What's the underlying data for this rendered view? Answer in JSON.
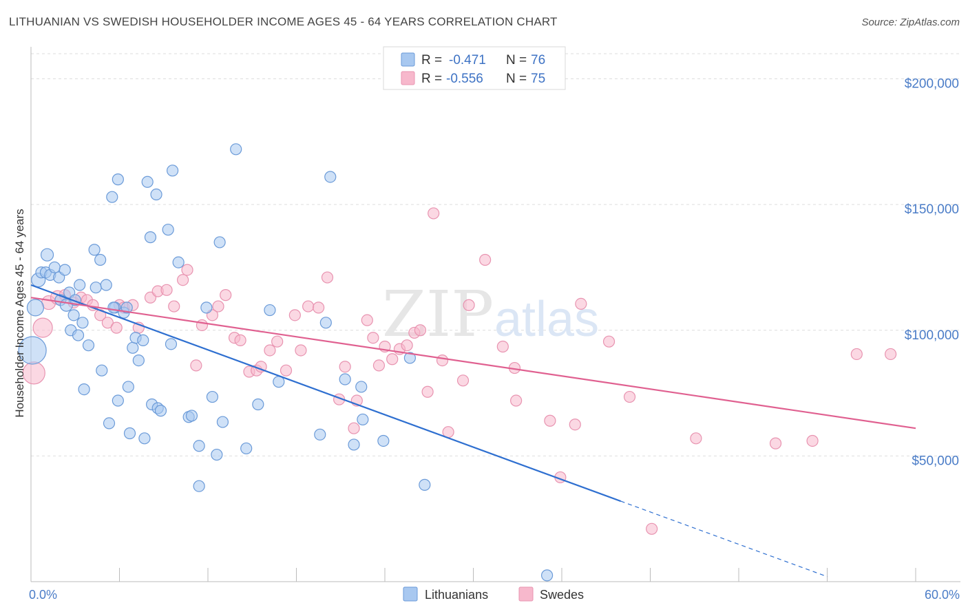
{
  "header": {
    "title": "LITHUANIAN VS SWEDISH HOUSEHOLDER INCOME AGES 45 - 64 YEARS CORRELATION CHART",
    "source": "Source: ZipAtlas.com"
  },
  "watermark": {
    "zip": "ZIP",
    "atlas": "atlas"
  },
  "colors": {
    "lithuanians_fill": "#a8c8f0",
    "lithuanians_stroke": "#6a9ad8",
    "lithuanians_line": "#2e6fd0",
    "swedes_fill": "#f7b8cc",
    "swedes_stroke": "#e893b0",
    "swedes_line": "#e06090",
    "grid": "#dddddd",
    "tick_label": "#4a7cc7"
  },
  "legend": {
    "row1": {
      "r_label": "R =",
      "r_value": "-0.471",
      "n_label": "N =",
      "n_value": "76"
    },
    "row2": {
      "r_label": "R =",
      "r_value": "-0.556",
      "n_label": "N =",
      "n_value": "75"
    }
  },
  "chart_data": {
    "type": "scatter",
    "ylabel": "Householder Income Ages 45 - 64 years",
    "xlim": [
      0,
      60
    ],
    "ylim": [
      0,
      210000
    ],
    "x_tick_labels": [
      {
        "value": 0,
        "label": "0.0%"
      },
      {
        "value": 60,
        "label": "60.0%"
      }
    ],
    "y_tick_labels": [
      {
        "value": 50000,
        "label": "$50,000"
      },
      {
        "value": 100000,
        "label": "$100,000"
      },
      {
        "value": 150000,
        "label": "$150,000"
      },
      {
        "value": 200000,
        "label": "$200,000"
      }
    ],
    "grid": true,
    "legend_position": "top-center",
    "series": [
      {
        "name": "Lithuanians",
        "trend": {
          "x1": 0,
          "y1": 118000,
          "x2": 40,
          "y2": 32000,
          "dash_to_x": 54,
          "dash_to_y": 2000
        },
        "points": [
          [
            0.1,
            92000,
            20
          ],
          [
            0.3,
            109000,
            12
          ],
          [
            0.5,
            120000,
            10
          ],
          [
            0.7,
            123000,
            8
          ],
          [
            1.0,
            123000,
            8
          ],
          [
            1.1,
            130000,
            9
          ],
          [
            1.3,
            122000,
            8
          ],
          [
            1.6,
            125000,
            8
          ],
          [
            1.9,
            121000,
            8
          ],
          [
            2.0,
            112000,
            8
          ],
          [
            2.3,
            124000,
            8
          ],
          [
            2.4,
            110000,
            9
          ],
          [
            2.6,
            115000,
            8
          ],
          [
            2.7,
            100000,
            8
          ],
          [
            2.9,
            106000,
            8
          ],
          [
            3.2,
            98000,
            8
          ],
          [
            3.3,
            118000,
            8
          ],
          [
            3.5,
            103000,
            8
          ],
          [
            3.6,
            76500,
            8
          ],
          [
            3.9,
            94000,
            8
          ],
          [
            4.3,
            132000,
            8
          ],
          [
            4.4,
            117000,
            8
          ],
          [
            4.7,
            128000,
            8
          ],
          [
            4.8,
            84000,
            8
          ],
          [
            5.1,
            118000,
            8
          ],
          [
            5.3,
            63000,
            8
          ],
          [
            5.5,
            153000,
            8
          ],
          [
            5.7,
            109000,
            8
          ],
          [
            5.9,
            72000,
            8
          ],
          [
            5.9,
            160000,
            8
          ],
          [
            6.3,
            107000,
            8
          ],
          [
            6.5,
            109000,
            8
          ],
          [
            6.6,
            77500,
            8
          ],
          [
            6.7,
            59000,
            8
          ],
          [
            6.9,
            93000,
            8
          ],
          [
            7.1,
            97000,
            8
          ],
          [
            7.3,
            88000,
            8
          ],
          [
            7.6,
            96000,
            8
          ],
          [
            7.7,
            57000,
            8
          ],
          [
            7.9,
            159000,
            8
          ],
          [
            8.1,
            137000,
            8
          ],
          [
            8.2,
            70500,
            8
          ],
          [
            8.5,
            154000,
            8
          ],
          [
            8.6,
            69000,
            8
          ],
          [
            8.8,
            68000,
            8
          ],
          [
            9.3,
            140000,
            8
          ],
          [
            9.5,
            94500,
            8
          ],
          [
            9.6,
            163500,
            8
          ],
          [
            10.0,
            127000,
            8
          ],
          [
            10.7,
            65500,
            8
          ],
          [
            10.9,
            66000,
            8
          ],
          [
            11.4,
            54000,
            8
          ],
          [
            11.4,
            38000,
            8
          ],
          [
            11.9,
            109000,
            8
          ],
          [
            12.3,
            73500,
            8
          ],
          [
            12.6,
            50500,
            8
          ],
          [
            12.8,
            135000,
            8
          ],
          [
            13.0,
            63500,
            8
          ],
          [
            13.9,
            172000,
            8
          ],
          [
            14.6,
            53000,
            8
          ],
          [
            15.4,
            70500,
            8
          ],
          [
            16.2,
            108000,
            8
          ],
          [
            16.8,
            79500,
            8
          ],
          [
            19.6,
            58500,
            8
          ],
          [
            20.0,
            103000,
            8
          ],
          [
            20.3,
            161000,
            8
          ],
          [
            21.3,
            80500,
            8
          ],
          [
            21.9,
            54500,
            8
          ],
          [
            22.4,
            77500,
            8
          ],
          [
            22.5,
            64500,
            8
          ],
          [
            23.9,
            56000,
            8
          ],
          [
            25.7,
            89000,
            8
          ],
          [
            26.7,
            38500,
            8
          ],
          [
            35.0,
            2500,
            8
          ],
          [
            5.6,
            109000,
            8
          ],
          [
            3.0,
            112000,
            8
          ]
        ]
      },
      {
        "name": "Swedes",
        "trend": {
          "x1": 0,
          "y1": 113000,
          "x2": 60,
          "y2": 61000
        },
        "points": [
          [
            0.2,
            83000,
            16
          ],
          [
            0.8,
            101000,
            14
          ],
          [
            1.2,
            111000,
            10
          ],
          [
            1.8,
            113000,
            10
          ],
          [
            2.3,
            114000,
            8
          ],
          [
            2.9,
            111000,
            8
          ],
          [
            3.4,
            113000,
            8
          ],
          [
            3.8,
            112000,
            8
          ],
          [
            4.2,
            110000,
            8
          ],
          [
            4.7,
            106000,
            8
          ],
          [
            5.2,
            103000,
            8
          ],
          [
            5.8,
            101000,
            8
          ],
          [
            6.0,
            110000,
            8
          ],
          [
            6.3,
            109000,
            8
          ],
          [
            6.9,
            110000,
            8
          ],
          [
            7.3,
            101000,
            8
          ],
          [
            8.1,
            113000,
            8
          ],
          [
            8.6,
            115500,
            8
          ],
          [
            9.2,
            116000,
            8
          ],
          [
            9.7,
            109500,
            8
          ],
          [
            10.3,
            120000,
            8
          ],
          [
            10.6,
            124000,
            8
          ],
          [
            11.2,
            86000,
            8
          ],
          [
            11.6,
            102000,
            8
          ],
          [
            12.3,
            106000,
            8
          ],
          [
            12.7,
            109500,
            8
          ],
          [
            13.2,
            114000,
            8
          ],
          [
            13.8,
            97000,
            8
          ],
          [
            14.2,
            96000,
            8
          ],
          [
            14.8,
            83500,
            8
          ],
          [
            15.3,
            84000,
            8
          ],
          [
            15.6,
            85500,
            8
          ],
          [
            16.2,
            92000,
            8
          ],
          [
            16.7,
            95500,
            8
          ],
          [
            17.3,
            84000,
            8
          ],
          [
            17.9,
            106000,
            8
          ],
          [
            18.3,
            92000,
            8
          ],
          [
            18.8,
            109500,
            8
          ],
          [
            19.5,
            109000,
            8
          ],
          [
            20.1,
            121000,
            8
          ],
          [
            20.9,
            72500,
            8
          ],
          [
            21.3,
            85500,
            8
          ],
          [
            21.9,
            61000,
            8
          ],
          [
            22.1,
            72000,
            8
          ],
          [
            22.8,
            104000,
            8
          ],
          [
            23.2,
            97000,
            8
          ],
          [
            23.6,
            86000,
            8
          ],
          [
            24.0,
            93500,
            8
          ],
          [
            24.5,
            88500,
            8
          ],
          [
            25.0,
            92500,
            8
          ],
          [
            25.5,
            94000,
            8
          ],
          [
            26.0,
            99000,
            8
          ],
          [
            26.4,
            100000,
            8
          ],
          [
            26.9,
            75500,
            8
          ],
          [
            27.3,
            146500,
            8
          ],
          [
            27.9,
            88000,
            8
          ],
          [
            28.3,
            59500,
            8
          ],
          [
            29.3,
            80000,
            8
          ],
          [
            29.7,
            110000,
            8
          ],
          [
            30.8,
            128000,
            8
          ],
          [
            32.0,
            93500,
            8
          ],
          [
            32.9,
            72000,
            8
          ],
          [
            32.8,
            85000,
            8
          ],
          [
            35.2,
            64000,
            8
          ],
          [
            35.9,
            41500,
            8
          ],
          [
            36.9,
            62500,
            8
          ],
          [
            37.3,
            110500,
            8
          ],
          [
            39.2,
            95500,
            8
          ],
          [
            40.6,
            73500,
            8
          ],
          [
            42.1,
            21000,
            8
          ],
          [
            45.1,
            57000,
            8
          ],
          [
            50.5,
            55000,
            8
          ],
          [
            53.0,
            56000,
            8
          ],
          [
            56.0,
            90500,
            8
          ],
          [
            58.3,
            90500,
            8
          ]
        ]
      }
    ]
  }
}
